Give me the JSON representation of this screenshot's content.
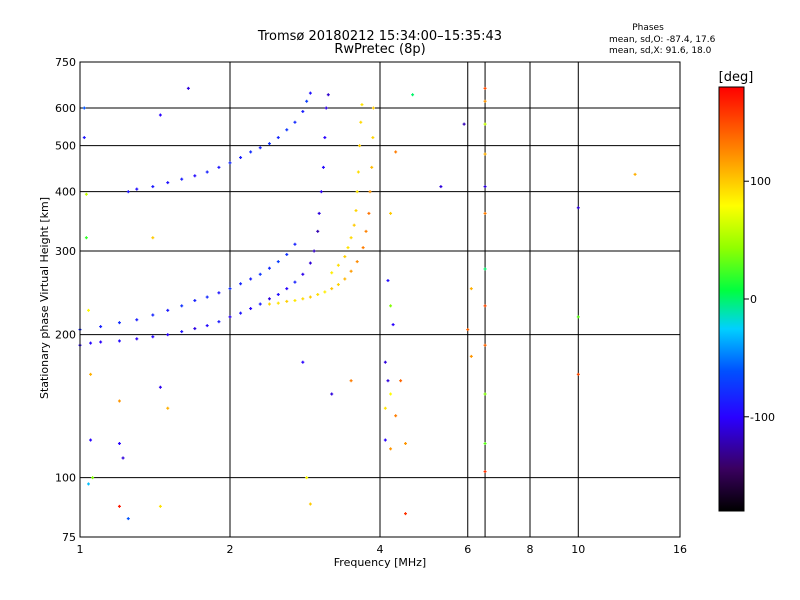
{
  "chart_data": {
    "type": "scatter",
    "title": "Tromsø 20180212 15:34:00–15:35:43",
    "subtitle": "RwPretec (8p)",
    "stats": {
      "heading": "Phases",
      "line_o": "mean, sd,O: -87.4, 17.6",
      "line_x": "mean, sd,X:  91.6, 18.0"
    },
    "xlabel": "Frequency [MHz]",
    "ylabel": "Stationary phase Virtual Height [km]",
    "x_scale": "log",
    "y_scale": "log",
    "xlim": [
      1,
      16
    ],
    "ylim": [
      75,
      750
    ],
    "x_ticks": [
      1,
      2,
      4,
      6,
      8,
      10,
      16
    ],
    "x_gridlines": [
      2,
      4,
      6,
      6.5,
      8,
      10
    ],
    "y_ticks": [
      75,
      100,
      200,
      300,
      400,
      500,
      600,
      750
    ],
    "y_gridlines": [
      100,
      200,
      300,
      400,
      500,
      600
    ],
    "grid": true,
    "colorbar": {
      "label": "[deg]",
      "range": [
        -180,
        180
      ],
      "ticks": [
        100,
        0,
        -100
      ]
    },
    "series": [
      {
        "trace": "o-lower",
        "points": [
          [
            1.0,
            190,
            -100
          ],
          [
            1.05,
            192,
            -98
          ],
          [
            1.1,
            193,
            -102
          ],
          [
            1.2,
            194,
            -96
          ],
          [
            1.3,
            196,
            -104
          ],
          [
            1.4,
            198,
            -98
          ],
          [
            1.5,
            200,
            -100
          ],
          [
            1.6,
            203,
            -92
          ],
          [
            1.7,
            206,
            -108
          ],
          [
            1.8,
            209,
            -96
          ],
          [
            1.9,
            213,
            -88
          ],
          [
            2.0,
            218,
            -104
          ],
          [
            2.1,
            222,
            -90
          ],
          [
            2.2,
            227,
            -100
          ],
          [
            2.3,
            232,
            -86
          ],
          [
            2.4,
            238,
            -110
          ],
          [
            2.5,
            243,
            -94
          ],
          [
            2.6,
            250,
            -100
          ],
          [
            2.7,
            258,
            -84
          ],
          [
            2.8,
            268,
            -106
          ],
          [
            2.9,
            283,
            -112
          ],
          [
            2.95,
            300,
            -118
          ],
          [
            3.0,
            330,
            -122
          ],
          [
            3.02,
            360,
            -110
          ],
          [
            3.05,
            400,
            -105
          ],
          [
            3.08,
            450,
            -96
          ],
          [
            3.1,
            520,
            -100
          ],
          [
            3.12,
            600,
            -108
          ],
          [
            3.15,
            640,
            -114
          ]
        ]
      },
      {
        "trace": "o-upper",
        "points": [
          [
            1.0,
            205,
            -80
          ],
          [
            1.1,
            208,
            -84
          ],
          [
            1.2,
            212,
            -78
          ],
          [
            1.3,
            215,
            -86
          ],
          [
            1.4,
            220,
            -82
          ],
          [
            1.5,
            225,
            -88
          ],
          [
            1.6,
            230,
            -76
          ],
          [
            1.7,
            236,
            -84
          ],
          [
            1.8,
            240,
            -80
          ],
          [
            1.9,
            245,
            -90
          ],
          [
            2.0,
            250,
            -78
          ],
          [
            2.1,
            256,
            -82
          ],
          [
            2.2,
            262,
            -86
          ],
          [
            2.3,
            268,
            -74
          ],
          [
            2.4,
            276,
            -80
          ],
          [
            2.5,
            285,
            -70
          ],
          [
            2.6,
            295,
            -76
          ],
          [
            2.7,
            310,
            -84
          ]
        ]
      },
      {
        "trace": "o-branch",
        "points": [
          [
            1.25,
            400,
            -90
          ],
          [
            1.3,
            405,
            -94
          ],
          [
            1.4,
            410,
            -88
          ],
          [
            1.5,
            418,
            -92
          ],
          [
            1.6,
            425,
            -86
          ],
          [
            1.7,
            432,
            -96
          ],
          [
            1.8,
            440,
            -84
          ],
          [
            1.9,
            450,
            -90
          ],
          [
            2.0,
            460,
            -80
          ],
          [
            2.1,
            472,
            -86
          ],
          [
            2.2,
            485,
            -78
          ],
          [
            2.3,
            495,
            -84
          ],
          [
            2.4,
            505,
            -76
          ],
          [
            2.5,
            520,
            -82
          ],
          [
            2.6,
            540,
            -74
          ],
          [
            2.7,
            560,
            -80
          ],
          [
            2.8,
            590,
            -86
          ],
          [
            2.85,
            620,
            -70
          ],
          [
            2.9,
            645,
            -92
          ]
        ]
      },
      {
        "trace": "x-lower",
        "points": [
          [
            2.4,
            232,
            95
          ],
          [
            2.5,
            233,
            90
          ],
          [
            2.6,
            235,
            98
          ],
          [
            2.7,
            236,
            88
          ],
          [
            2.8,
            238,
            94
          ],
          [
            2.9,
            240,
            100
          ],
          [
            3.0,
            243,
            92
          ],
          [
            3.1,
            246,
            86
          ],
          [
            3.2,
            250,
            102
          ],
          [
            3.3,
            255,
            96
          ],
          [
            3.4,
            262,
            108
          ],
          [
            3.5,
            272,
            118
          ],
          [
            3.6,
            285,
            124
          ],
          [
            3.7,
            305,
            130
          ],
          [
            3.75,
            330,
            128
          ],
          [
            3.8,
            360,
            134
          ],
          [
            3.82,
            400,
            120
          ],
          [
            3.85,
            450,
            106
          ],
          [
            3.87,
            520,
            96
          ],
          [
            3.88,
            600,
            100
          ]
        ]
      },
      {
        "trace": "x-upper",
        "points": [
          [
            3.2,
            270,
            86
          ],
          [
            3.3,
            280,
            92
          ],
          [
            3.4,
            292,
            98
          ],
          [
            3.45,
            305,
            90
          ],
          [
            3.5,
            320,
            94
          ],
          [
            3.55,
            340,
            100
          ],
          [
            3.58,
            365,
            96
          ],
          [
            3.6,
            400,
            88
          ],
          [
            3.62,
            440,
            92
          ],
          [
            3.64,
            500,
            98
          ],
          [
            3.66,
            560,
            94
          ],
          [
            3.68,
            610,
            90
          ]
        ]
      },
      {
        "trace": "scatter",
        "points": [
          [
            1.02,
            600,
            -60
          ],
          [
            1.02,
            520,
            -90
          ],
          [
            1.03,
            395,
            60
          ],
          [
            1.03,
            320,
            20
          ],
          [
            1.04,
            225,
            80
          ],
          [
            1.05,
            165,
            110
          ],
          [
            1.05,
            120,
            -100
          ],
          [
            1.06,
            100,
            40
          ],
          [
            1.04,
            97,
            -30
          ],
          [
            1.2,
            87,
            170
          ],
          [
            1.25,
            82,
            -60
          ],
          [
            1.2,
            118,
            -100
          ],
          [
            1.22,
            110,
            -110
          ],
          [
            1.2,
            145,
            120
          ],
          [
            1.45,
            580,
            -100
          ],
          [
            1.45,
            155,
            -105
          ],
          [
            1.5,
            140,
            110
          ],
          [
            1.45,
            87,
            90
          ],
          [
            1.65,
            660,
            -110
          ],
          [
            1.4,
            320,
            100
          ],
          [
            2.8,
            175,
            -100
          ],
          [
            2.85,
            100,
            80
          ],
          [
            2.9,
            88,
            100
          ],
          [
            3.2,
            150,
            -110
          ],
          [
            3.5,
            160,
            130
          ],
          [
            4.2,
            360,
            100
          ],
          [
            4.15,
            260,
            -95
          ],
          [
            4.2,
            230,
            40
          ],
          [
            4.25,
            210,
            -100
          ],
          [
            4.1,
            175,
            -110
          ],
          [
            4.15,
            160,
            -110
          ],
          [
            4.2,
            150,
            80
          ],
          [
            4.1,
            140,
            90
          ],
          [
            4.3,
            135,
            130
          ],
          [
            4.1,
            120,
            -100
          ],
          [
            4.2,
            115,
            120
          ],
          [
            4.3,
            485,
            130
          ],
          [
            4.4,
            160,
            140
          ],
          [
            4.5,
            118,
            120
          ],
          [
            4.5,
            84,
            160
          ],
          [
            4.65,
            640,
            0
          ],
          [
            5.3,
            410,
            -110
          ],
          [
            5.9,
            555,
            -120
          ],
          [
            6.0,
            205,
            140
          ],
          [
            6.5,
            660,
            150
          ],
          [
            6.5,
            620,
            120
          ],
          [
            6.5,
            555,
            60
          ],
          [
            6.5,
            480,
            110
          ],
          [
            6.5,
            410,
            -110
          ],
          [
            6.5,
            360,
            130
          ],
          [
            6.5,
            275,
            0
          ],
          [
            6.5,
            230,
            150
          ],
          [
            6.5,
            190,
            140
          ],
          [
            6.5,
            150,
            40
          ],
          [
            6.5,
            118,
            30
          ],
          [
            6.5,
            103,
            160
          ],
          [
            6.1,
            250,
            110
          ],
          [
            6.1,
            180,
            120
          ],
          [
            10.0,
            370,
            -110
          ],
          [
            10.0,
            218,
            30
          ],
          [
            10.0,
            165,
            150
          ],
          [
            13.0,
            435,
            110
          ]
        ]
      }
    ]
  }
}
